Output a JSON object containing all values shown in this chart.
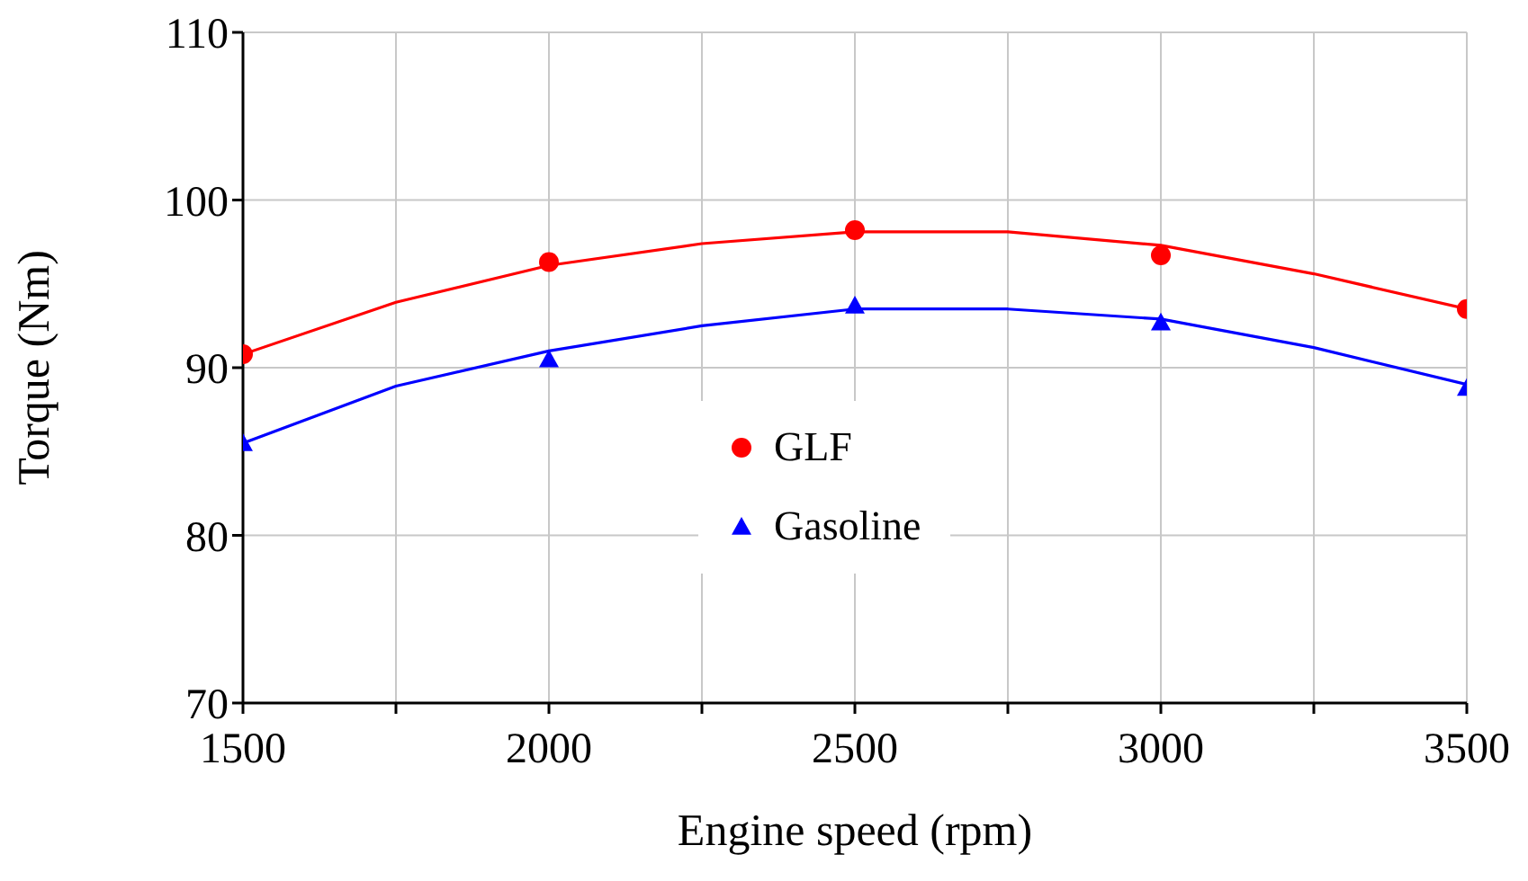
{
  "chart_data": {
    "type": "scatter",
    "xlabel": "Engine speed (rpm)",
    "ylabel": "Torque (Nm)",
    "xlim": [
      1500,
      3500
    ],
    "ylim": [
      70,
      110
    ],
    "xticks": [
      1500,
      {
        "value": 1750,
        "label": null
      },
      2000,
      {
        "value": 2250,
        "label": null
      },
      2500,
      {
        "value": 2750,
        "label": null
      },
      3000,
      {
        "value": 3250,
        "label": null
      },
      3500
    ],
    "yticks": [
      70,
      80,
      90,
      100,
      110
    ],
    "grid": true,
    "legend": "center",
    "series": [
      {
        "type": "line",
        "color": "#ff0000",
        "marker": "none",
        "x": [
          1500,
          1750,
          2000,
          2250,
          2500,
          2750,
          3000,
          3250,
          3500
        ],
        "values": [
          90.8,
          93.9,
          96.1,
          97.4,
          98.1,
          98.1,
          97.3,
          95.6,
          93.5
        ]
      },
      {
        "type": "line",
        "color": "#0000ff",
        "marker": "none",
        "x": [
          1500,
          1750,
          2000,
          2250,
          2500,
          2750,
          3000,
          3250,
          3500
        ],
        "values": [
          85.5,
          88.9,
          91.0,
          92.5,
          93.5,
          93.5,
          92.9,
          91.2,
          89.0
        ]
      },
      {
        "name": "GLF",
        "color": "#ff0000",
        "marker": "circle",
        "x": [
          1500,
          2000,
          2500,
          3000,
          3500
        ],
        "values": [
          90.8,
          96.3,
          98.2,
          96.7,
          93.5
        ]
      },
      {
        "name": "Gasoline",
        "color": "#0000ff",
        "marker": "triangle",
        "x": [
          1500,
          2000,
          2500,
          3000,
          3500
        ],
        "values": [
          85.5,
          90.5,
          93.7,
          92.7,
          88.8
        ]
      }
    ]
  }
}
